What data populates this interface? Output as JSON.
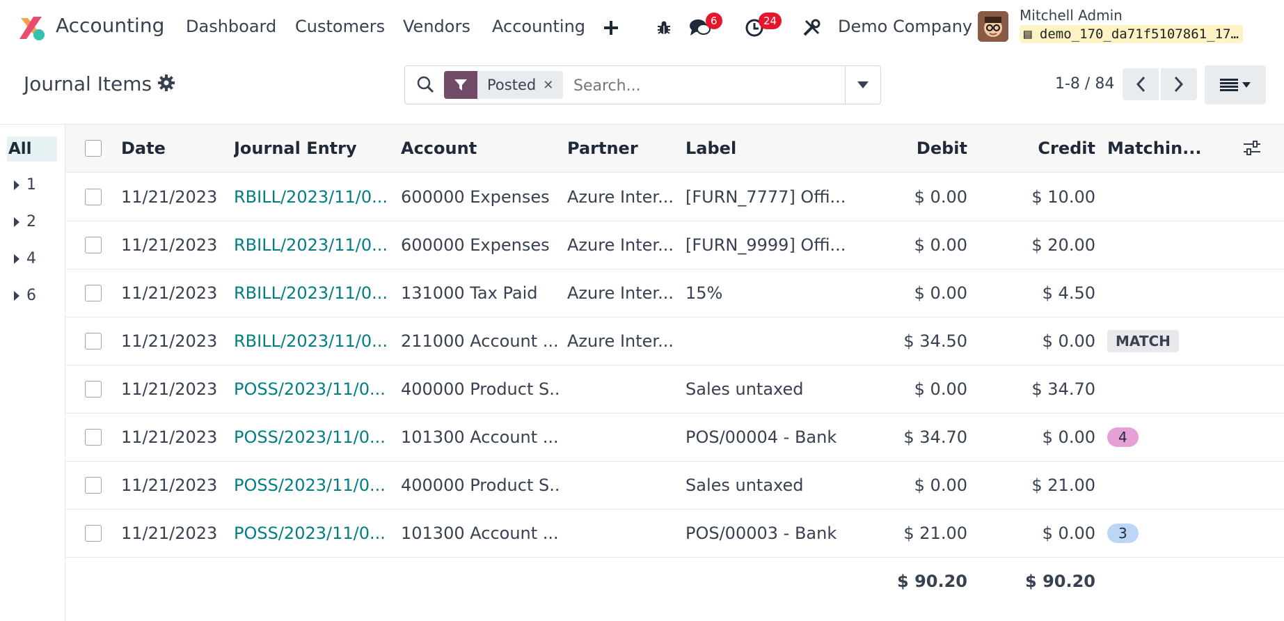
{
  "navbar": {
    "app_name": "Accounting",
    "menu": [
      "Dashboard",
      "Customers",
      "Vendors",
      "Accounting"
    ],
    "messages_count": "6",
    "activities_count": "24",
    "company": "Demo Company",
    "user": "Mitchell Admin",
    "database": "demo_170_da71f5107861_17…"
  },
  "control": {
    "title": "Journal Items",
    "facet": "Posted",
    "search_placeholder": "Search...",
    "pager": "1-8 / 84"
  },
  "sidebar": {
    "all_label": "All",
    "groups": [
      "1",
      "2",
      "4",
      "6"
    ]
  },
  "table": {
    "columns": [
      "Date",
      "Journal Entry",
      "Account",
      "Partner",
      "Label",
      "Debit",
      "Credit",
      "Matchin..."
    ],
    "rows": [
      {
        "date": "11/21/2023",
        "entry": "RBILL/2023/11/0...",
        "account": "600000 Expenses",
        "partner": "Azure Inter...",
        "label": "[FURN_7777] Offi...",
        "debit": "$ 0.00",
        "credit": "$ 10.00",
        "matching": "",
        "matching_type": "none"
      },
      {
        "date": "11/21/2023",
        "entry": "RBILL/2023/11/0...",
        "account": "600000 Expenses",
        "partner": "Azure Inter...",
        "label": "[FURN_9999] Offi...",
        "debit": "$ 0.00",
        "credit": "$ 20.00",
        "matching": "",
        "matching_type": "none"
      },
      {
        "date": "11/21/2023",
        "entry": "RBILL/2023/11/0...",
        "account": "131000 Tax Paid",
        "partner": "Azure Inter...",
        "label": "15%",
        "debit": "$ 0.00",
        "credit": "$ 4.50",
        "matching": "",
        "matching_type": "none"
      },
      {
        "date": "11/21/2023",
        "entry": "RBILL/2023/11/0...",
        "account": "211000 Account ...",
        "partner": "Azure Inter...",
        "label": "",
        "debit": "$ 34.50",
        "credit": "$ 0.00",
        "matching": "MATCH",
        "matching_type": "button"
      },
      {
        "date": "11/21/2023",
        "entry": "POSS/2023/11/0...",
        "account": "400000 Product S...",
        "partner": "",
        "label": "Sales untaxed",
        "debit": "$ 0.00",
        "credit": "$ 34.70",
        "matching": "",
        "matching_type": "none"
      },
      {
        "date": "11/21/2023",
        "entry": "POSS/2023/11/0...",
        "account": "101300 Account ...",
        "partner": "",
        "label": "POS/00004 - Bank",
        "debit": "$ 34.70",
        "credit": "$ 0.00",
        "matching": "4",
        "matching_type": "pill",
        "matching_color": "#e5a1d6"
      },
      {
        "date": "11/21/2023",
        "entry": "POSS/2023/11/0...",
        "account": "400000 Product S...",
        "partner": "",
        "label": "Sales untaxed",
        "debit": "$ 0.00",
        "credit": "$ 21.00",
        "matching": "",
        "matching_type": "none"
      },
      {
        "date": "11/21/2023",
        "entry": "POSS/2023/11/0...",
        "account": "101300 Account ...",
        "partner": "",
        "label": "POS/00003 - Bank",
        "debit": "$ 21.00",
        "credit": "$ 0.00",
        "matching": "3",
        "matching_type": "pill",
        "matching_color": "#bcd6f5"
      }
    ],
    "total_debit": "$ 90.20",
    "total_credit": "$ 90.20"
  },
  "colors": {
    "brand": "#714b67",
    "link": "#017e84",
    "badge": "#e4172d"
  }
}
